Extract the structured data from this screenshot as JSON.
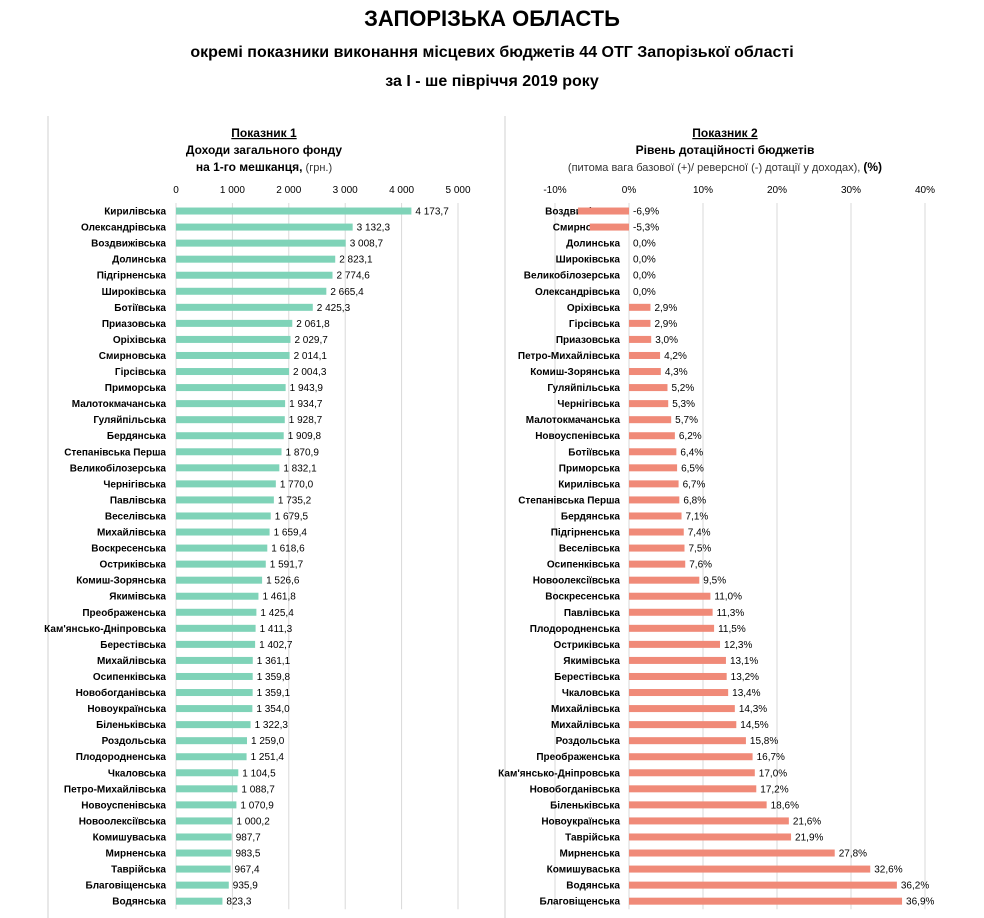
{
  "header": {
    "title": "ЗАПОРІЗЬКА ОБЛАСТЬ",
    "subtitle_line1": "окремі показники виконання місцевих бюджетів 44 ОТГ Запорізької області",
    "subtitle_line2": "за I - ше півріччя 2019 року"
  },
  "colors": {
    "left_bars": "#7fd3b8",
    "right_bars": "#f08a78",
    "grid": "#d9d9d9",
    "panel_border": "#d0d0d0"
  },
  "chart_data": [
    {
      "type": "bar",
      "orientation": "horizontal",
      "title_line1": "Показник 1",
      "title_line2": "Доходи загального фонду",
      "title_line3_bold": "на 1-го мешканця,",
      "title_line3_rest": " (грн.)",
      "xlim": [
        0,
        5000
      ],
      "ticks": [
        0,
        1000,
        2000,
        3000,
        4000,
        5000
      ],
      "tick_labels": [
        "0",
        "1 000",
        "2 000",
        "3 000",
        "4 000",
        "5 000"
      ],
      "grid": true,
      "categories": [
        "Кирилівська",
        "Олександрівська",
        "Воздвижівська",
        "Долинська",
        "Підгірненська",
        "Широківська",
        "Ботіївська",
        "Приазовська",
        "Оріхівська",
        "Смирновська",
        "Гірсівська",
        "Приморська",
        "Малотокмачанська",
        "Гуляйпільська",
        "Бердянська",
        "Степанівська Перша",
        "Великобілозерська",
        "Чернігівська",
        "Павлівська",
        "Веселівська",
        "Михайлівська",
        "Воскресенська",
        "Остриківська",
        "Комиш-Зорянська",
        "Якимівська",
        "Преображенська",
        "Кам'янсько-Дніпровська",
        "Берестівська",
        "Михайлівська",
        "Осипенківська",
        "Новобогданівська",
        "Новоукраїнська",
        "Біленьківська",
        "Роздольська",
        "Плодородненська",
        "Чкаловська",
        "Петро-Михайлівська",
        "Новоуспенівська",
        "Новоолексіївська",
        "Комишуваська",
        "Мирненська",
        "Таврійська",
        "Благовіщенська",
        "Водянська"
      ],
      "values": [
        4173.7,
        3132.3,
        3008.7,
        2823.1,
        2774.6,
        2665.4,
        2425.3,
        2061.8,
        2029.7,
        2014.1,
        2004.3,
        1943.9,
        1934.7,
        1928.7,
        1909.8,
        1870.9,
        1832.1,
        1770.0,
        1735.2,
        1679.5,
        1659.4,
        1618.6,
        1591.7,
        1526.6,
        1461.8,
        1425.4,
        1411.3,
        1402.7,
        1361.1,
        1359.8,
        1359.1,
        1354.0,
        1322.3,
        1259.0,
        1251.4,
        1104.5,
        1088.7,
        1070.9,
        1000.2,
        987.7,
        983.5,
        967.4,
        935.9,
        823.3
      ],
      "labels": [
        "4 173,7",
        "3 132,3",
        "3 008,7",
        "2 823,1",
        "2 774,6",
        "2 665,4",
        "2 425,3",
        "2 061,8",
        "2 029,7",
        "2 014,1",
        "2 004,3",
        "1 943,9",
        "1 934,7",
        "1 928,7",
        "1 909,8",
        "1 870,9",
        "1 832,1",
        "1 770,0",
        "1 735,2",
        "1 679,5",
        "1 659,4",
        "1 618,6",
        "1 591,7",
        "1 526,6",
        "1 461,8",
        "1 425,4",
        "1 411,3",
        "1 402,7",
        "1 361,1",
        "1 359,8",
        "1 359,1",
        "1 354,0",
        "1 322,3",
        "1 259,0",
        "1 251,4",
        "1 104,5",
        "1 088,7",
        "1 070,9",
        "1 000,2",
        "987,7",
        "983,5",
        "967,4",
        "935,9",
        "823,3"
      ]
    },
    {
      "type": "bar",
      "orientation": "horizontal",
      "title_line1": "Показник 2",
      "title_line2": "Рівень дотаційності бюджетів",
      "title_line3_rest": "(питома вага базової (+)/ реверсної (-) дотації  у доходах), ",
      "title_line3_bold": "(%)",
      "xlim": [
        -10,
        40
      ],
      "ticks": [
        -10,
        0,
        10,
        20,
        30,
        40
      ],
      "tick_labels": [
        "-10%",
        "0%",
        "10%",
        "20%",
        "30%",
        "40%"
      ],
      "grid": true,
      "categories": [
        "Воздвижівська",
        "Смирновська",
        "Долинська",
        "Широківська",
        "Великобілозерська",
        "Олександрівська",
        "Оріхівська",
        "Гірсівська",
        "Приазовська",
        "Петро-Михайлівська",
        "Комиш-Зорянська",
        "Гуляйпільська",
        "Чернігівська",
        "Малотокмачанська",
        "Новоуспенівська",
        "Ботіївська",
        "Приморська",
        "Кирилівська",
        "Степанівська Перша",
        "Бердянська",
        "Підгірненська",
        "Веселівська",
        "Осипенківська",
        "Новоолексіївська",
        "Воскресенська",
        "Павлівська",
        "Плодородненська",
        "Остриківська",
        "Якимівська",
        "Берестівська",
        "Чкаловська",
        "Михайлівська",
        "Михайлівська",
        "Роздольська",
        "Преображенська",
        "Кам'янсько-Дніпровська",
        "Новобогданівська",
        "Біленьківська",
        "Новоукраїнська",
        "Таврійська",
        "Мирненська",
        "Комишуваська",
        "Водянська",
        "Благовіщенська"
      ],
      "values": [
        -6.9,
        -5.3,
        0.0,
        0.0,
        0.0,
        0.0,
        2.9,
        2.9,
        3.0,
        4.2,
        4.3,
        5.2,
        5.3,
        5.7,
        6.2,
        6.4,
        6.5,
        6.7,
        6.8,
        7.1,
        7.4,
        7.5,
        7.6,
        9.5,
        11.0,
        11.3,
        11.5,
        12.3,
        13.1,
        13.2,
        13.4,
        14.3,
        14.5,
        15.8,
        16.7,
        17.0,
        17.2,
        18.6,
        21.6,
        21.9,
        27.8,
        32.6,
        36.2,
        36.9
      ],
      "labels": [
        "-6,9%",
        "-5,3%",
        "0,0%",
        "0,0%",
        "0,0%",
        "0,0%",
        "2,9%",
        "2,9%",
        "3,0%",
        "4,2%",
        "4,3%",
        "5,2%",
        "5,3%",
        "5,7%",
        "6,2%",
        "6,4%",
        "6,5%",
        "6,7%",
        "6,8%",
        "7,1%",
        "7,4%",
        "7,5%",
        "7,6%",
        "9,5%",
        "11,0%",
        "11,3%",
        "11,5%",
        "12,3%",
        "13,1%",
        "13,2%",
        "13,4%",
        "14,3%",
        "14,5%",
        "15,8%",
        "16,7%",
        "17,0%",
        "17,2%",
        "18,6%",
        "21,6%",
        "21,9%",
        "27,8%",
        "32,6%",
        "36,2%",
        "36,9%"
      ]
    }
  ]
}
